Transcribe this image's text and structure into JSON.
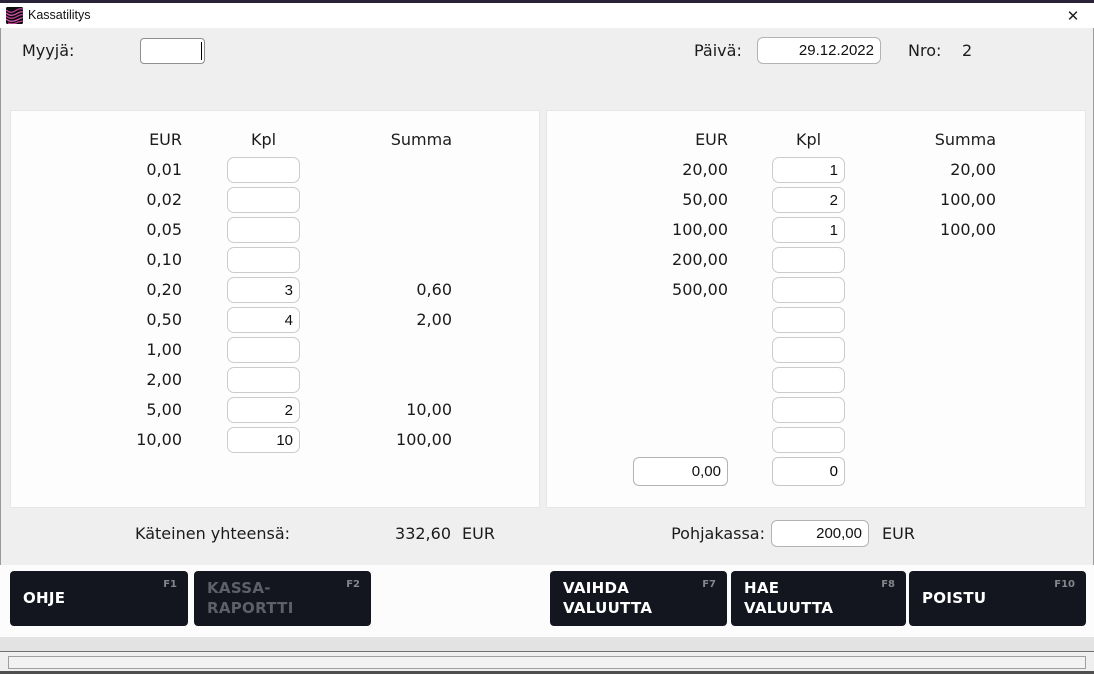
{
  "window": {
    "title": "Kassatilitys",
    "close_icon": "✕"
  },
  "form": {
    "seller_label": "Myyjä:",
    "seller_value": "",
    "date_label": "Päivä:",
    "date_value": "29.12.2022",
    "number_label": "Nro:",
    "number_value": "2"
  },
  "table": {
    "headers": {
      "eur": "EUR",
      "kpl": "Kpl",
      "summa": "Summa"
    }
  },
  "coins_panel": {
    "rows": [
      {
        "eur": "0,01",
        "kpl": "",
        "summa": ""
      },
      {
        "eur": "0,02",
        "kpl": "",
        "summa": ""
      },
      {
        "eur": "0,05",
        "kpl": "",
        "summa": ""
      },
      {
        "eur": "0,10",
        "kpl": "",
        "summa": ""
      },
      {
        "eur": "0,20",
        "kpl": "3",
        "summa": "0,60"
      },
      {
        "eur": "0,50",
        "kpl": "4",
        "summa": "2,00"
      },
      {
        "eur": "1,00",
        "kpl": "",
        "summa": ""
      },
      {
        "eur": "2,00",
        "kpl": "",
        "summa": ""
      },
      {
        "eur": "5,00",
        "kpl": "2",
        "summa": "10,00"
      },
      {
        "eur": "10,00",
        "kpl": "10",
        "summa": "100,00"
      }
    ]
  },
  "bills_panel": {
    "rows": [
      {
        "eur": "20,00",
        "kpl": "1",
        "summa": "20,00"
      },
      {
        "eur": "50,00",
        "kpl": "2",
        "summa": "100,00"
      },
      {
        "eur": "100,00",
        "kpl": "1",
        "summa": "100,00"
      },
      {
        "eur": "200,00",
        "kpl": "",
        "summa": ""
      },
      {
        "eur": "500,00",
        "kpl": "",
        "summa": ""
      },
      {
        "eur": "",
        "kpl": "",
        "summa": ""
      },
      {
        "eur": "",
        "kpl": "",
        "summa": ""
      },
      {
        "eur": "",
        "kpl": "",
        "summa": ""
      },
      {
        "eur": "",
        "kpl": "",
        "summa": ""
      },
      {
        "eur": "",
        "kpl": "",
        "summa": ""
      }
    ],
    "custom_row": {
      "eur_value": "0,00",
      "kpl_value": "0"
    }
  },
  "totals": {
    "cash_label": "Käteinen yhteensä:",
    "cash_value": "332,60",
    "cash_unit": "EUR",
    "float_label": "Pohjakassa:",
    "float_value": "200,00",
    "float_unit": "EUR"
  },
  "buttons": {
    "help": {
      "label": "OHJE",
      "key": "F1"
    },
    "report": {
      "label": "KASSA-RAPORTTI",
      "key": "F2"
    },
    "change_currency": {
      "label": "VAIHDA VALUUTTA",
      "key": "F7"
    },
    "get_currency": {
      "label": "HAE VALUUTTA",
      "key": "F8"
    },
    "exit": {
      "label": "POISTU",
      "key": "F10"
    }
  },
  "colors": {
    "accent": "#c23d97",
    "button_bg": "#14161f",
    "window_border": "#2b2139",
    "background": "#efefef"
  }
}
